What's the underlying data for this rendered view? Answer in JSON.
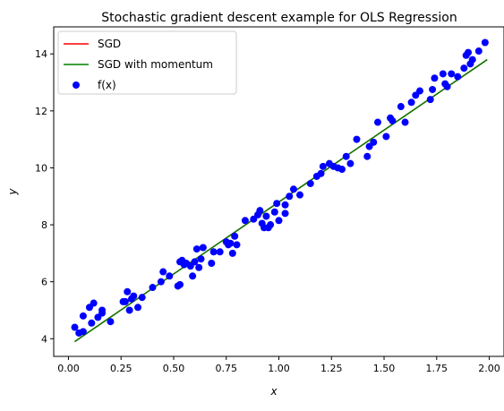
{
  "chart_data": {
    "type": "scatter",
    "title": "Stochastic gradient descent example for OLS Regression",
    "xlabel": "x",
    "ylabel": "y",
    "xlim": [
      -0.07,
      2.07
    ],
    "ylim": [
      3.38,
      14.95
    ],
    "xticks": [
      0.0,
      0.25,
      0.5,
      0.75,
      1.0,
      1.25,
      1.5,
      1.75,
      2.0
    ],
    "xtick_labels": [
      "0.00",
      "0.25",
      "0.50",
      "0.75",
      "1.00",
      "1.25",
      "1.50",
      "1.75",
      "2.00"
    ],
    "yticks": [
      4,
      6,
      8,
      10,
      12,
      14
    ],
    "ytick_labels": [
      "4",
      "6",
      "8",
      "10",
      "12",
      "14"
    ],
    "grid": false,
    "legend_position": "upper-left",
    "legend": [
      {
        "label": "SGD",
        "kind": "line",
        "color": "#ff0000"
      },
      {
        "label": "SGD with momentum",
        "kind": "line",
        "color": "#008000"
      },
      {
        "label": "f(x)",
        "kind": "marker",
        "color": "#0000ff"
      }
    ],
    "lines": [
      {
        "name": "SGD",
        "color": "#ff0000",
        "x": [
          0.03,
          1.99
        ],
        "y": [
          3.9,
          13.8
        ]
      },
      {
        "name": "SGD with momentum",
        "color": "#008000",
        "x": [
          0.03,
          1.99
        ],
        "y": [
          3.9,
          13.8
        ]
      }
    ],
    "scatter": {
      "name": "f(x)",
      "color": "#0000ff",
      "points": [
        [
          0.03,
          4.4
        ],
        [
          0.05,
          4.2
        ],
        [
          0.07,
          4.25
        ],
        [
          0.07,
          4.8
        ],
        [
          0.1,
          5.1
        ],
        [
          0.11,
          4.55
        ],
        [
          0.12,
          5.25
        ],
        [
          0.14,
          4.75
        ],
        [
          0.16,
          4.9
        ],
        [
          0.16,
          5.0
        ],
        [
          0.2,
          4.6
        ],
        [
          0.26,
          5.3
        ],
        [
          0.27,
          5.3
        ],
        [
          0.28,
          5.65
        ],
        [
          0.29,
          5.0
        ],
        [
          0.3,
          5.4
        ],
        [
          0.31,
          5.5
        ],
        [
          0.33,
          5.1
        ],
        [
          0.35,
          5.45
        ],
        [
          0.4,
          5.8
        ],
        [
          0.44,
          6.0
        ],
        [
          0.45,
          6.35
        ],
        [
          0.48,
          6.2
        ],
        [
          0.52,
          5.85
        ],
        [
          0.53,
          5.9
        ],
        [
          0.53,
          6.7
        ],
        [
          0.54,
          6.75
        ],
        [
          0.55,
          6.6
        ],
        [
          0.56,
          6.65
        ],
        [
          0.58,
          6.55
        ],
        [
          0.59,
          6.2
        ],
        [
          0.6,
          6.7
        ],
        [
          0.61,
          7.15
        ],
        [
          0.62,
          6.5
        ],
        [
          0.63,
          6.8
        ],
        [
          0.64,
          7.2
        ],
        [
          0.68,
          6.65
        ],
        [
          0.69,
          7.05
        ],
        [
          0.72,
          7.05
        ],
        [
          0.75,
          7.4
        ],
        [
          0.76,
          7.3
        ],
        [
          0.77,
          7.35
        ],
        [
          0.78,
          7.0
        ],
        [
          0.79,
          7.6
        ],
        [
          0.8,
          7.3
        ],
        [
          0.84,
          8.15
        ],
        [
          0.88,
          8.2
        ],
        [
          0.9,
          8.35
        ],
        [
          0.91,
          8.5
        ],
        [
          0.92,
          8.05
        ],
        [
          0.93,
          7.9
        ],
        [
          0.94,
          8.3
        ],
        [
          0.95,
          7.9
        ],
        [
          0.96,
          8.0
        ],
        [
          0.98,
          8.45
        ],
        [
          0.99,
          8.75
        ],
        [
          1.0,
          8.15
        ],
        [
          1.03,
          8.4
        ],
        [
          1.03,
          8.7
        ],
        [
          1.05,
          9.0
        ],
        [
          1.07,
          9.25
        ],
        [
          1.1,
          9.05
        ],
        [
          1.15,
          9.45
        ],
        [
          1.18,
          9.7
        ],
        [
          1.2,
          9.8
        ],
        [
          1.21,
          10.05
        ],
        [
          1.24,
          10.15
        ],
        [
          1.26,
          10.05
        ],
        [
          1.28,
          10.0
        ],
        [
          1.3,
          9.95
        ],
        [
          1.32,
          10.4
        ],
        [
          1.34,
          10.15
        ],
        [
          1.37,
          11.0
        ],
        [
          1.42,
          10.4
        ],
        [
          1.43,
          10.75
        ],
        [
          1.45,
          10.9
        ],
        [
          1.47,
          11.6
        ],
        [
          1.51,
          11.1
        ],
        [
          1.53,
          11.75
        ],
        [
          1.54,
          11.65
        ],
        [
          1.58,
          12.15
        ],
        [
          1.6,
          11.6
        ],
        [
          1.63,
          12.3
        ],
        [
          1.65,
          12.55
        ],
        [
          1.67,
          12.7
        ],
        [
          1.72,
          12.4
        ],
        [
          1.73,
          12.75
        ],
        [
          1.74,
          13.15
        ],
        [
          1.78,
          13.3
        ],
        [
          1.79,
          12.95
        ],
        [
          1.8,
          12.85
        ],
        [
          1.82,
          13.3
        ],
        [
          1.85,
          13.2
        ],
        [
          1.88,
          13.5
        ],
        [
          1.89,
          13.95
        ],
        [
          1.9,
          14.05
        ],
        [
          1.91,
          13.65
        ],
        [
          1.92,
          13.8
        ],
        [
          1.95,
          14.1
        ],
        [
          1.98,
          14.4
        ]
      ]
    }
  }
}
